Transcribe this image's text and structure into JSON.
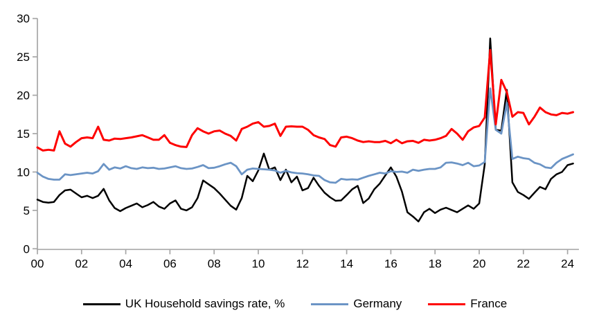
{
  "chart_data": {
    "type": "line",
    "title": "",
    "xlabel": "",
    "ylabel": "",
    "x_unit": "quarterly, 2000Q1 - 2024Q2",
    "x_tick_labels": [
      "00",
      "02",
      "04",
      "06",
      "08",
      "10",
      "12",
      "14",
      "16",
      "18",
      "20",
      "22",
      "24"
    ],
    "y_ticks": [
      0,
      5,
      10,
      15,
      20,
      25,
      30
    ],
    "ylim": [
      0,
      30
    ],
    "grid": false,
    "legend_position": "bottom",
    "axis_color": "#a6a6a6",
    "series": [
      {
        "id": "uk",
        "name": "UK Household savings rate, %",
        "color": "#000000",
        "stroke_width": 2.5,
        "values": [
          6.4,
          6.1,
          6.0,
          6.1,
          7.0,
          7.6,
          7.7,
          7.2,
          6.7,
          6.9,
          6.6,
          6.9,
          7.8,
          6.3,
          5.3,
          4.9,
          5.3,
          5.6,
          5.9,
          5.4,
          5.7,
          6.1,
          5.5,
          5.2,
          5.9,
          6.3,
          5.2,
          5.0,
          5.4,
          6.6,
          8.9,
          8.4,
          7.9,
          7.2,
          6.4,
          5.6,
          5.1,
          6.6,
          9.5,
          8.8,
          10.2,
          12.4,
          10.3,
          10.6,
          8.95,
          10.3,
          8.65,
          9.4,
          7.6,
          7.9,
          9.25,
          8.2,
          7.3,
          6.7,
          6.25,
          6.3,
          7.0,
          7.75,
          8.2,
          5.95,
          6.55,
          7.75,
          8.5,
          9.55,
          10.6,
          9.4,
          7.45,
          4.75,
          4.2,
          3.55,
          4.75,
          5.2,
          4.65,
          5.1,
          5.35,
          5.05,
          4.75,
          5.2,
          5.65,
          5.2,
          5.9,
          11.0,
          27.4,
          15.5,
          15.4,
          20.7,
          8.65,
          7.4,
          7.0,
          6.5,
          7.3,
          8.05,
          7.75,
          9.1,
          9.7,
          10.0,
          10.9,
          11.1
        ]
      },
      {
        "id": "germany",
        "name": "Germany",
        "color": "#6b94c5",
        "stroke_width": 2.8,
        "values": [
          9.9,
          9.4,
          9.1,
          9.0,
          9.0,
          9.7,
          9.6,
          9.7,
          9.8,
          9.9,
          9.8,
          10.1,
          11.05,
          10.3,
          10.6,
          10.45,
          10.75,
          10.5,
          10.4,
          10.6,
          10.5,
          10.55,
          10.4,
          10.45,
          10.6,
          10.75,
          10.5,
          10.4,
          10.45,
          10.65,
          10.9,
          10.5,
          10.55,
          10.75,
          11.0,
          11.2,
          10.75,
          9.7,
          10.3,
          10.45,
          10.4,
          10.35,
          10.3,
          10.2,
          9.9,
          10.15,
          9.95,
          9.85,
          9.8,
          9.7,
          9.55,
          9.5,
          8.95,
          8.65,
          8.6,
          9.1,
          9.0,
          9.05,
          9.0,
          9.25,
          9.5,
          9.7,
          9.9,
          9.8,
          10.1,
          10.0,
          10.05,
          9.9,
          10.3,
          10.15,
          10.3,
          10.4,
          10.4,
          10.6,
          11.2,
          11.25,
          11.1,
          10.9,
          11.2,
          10.75,
          10.85,
          11.3,
          20.9,
          15.5,
          15.0,
          19.0,
          11.7,
          12.0,
          11.8,
          11.7,
          11.2,
          11.0,
          10.6,
          10.5,
          11.2,
          11.7,
          12.0,
          12.3
        ]
      },
      {
        "id": "france",
        "name": "France",
        "color": "#fe0000",
        "stroke_width": 3.0,
        "values": [
          13.2,
          12.8,
          12.9,
          12.8,
          15.3,
          13.7,
          13.3,
          13.9,
          14.4,
          14.5,
          14.4,
          15.9,
          14.2,
          14.1,
          14.35,
          14.3,
          14.4,
          14.5,
          14.65,
          14.8,
          14.5,
          14.2,
          14.2,
          14.8,
          13.8,
          13.5,
          13.3,
          13.25,
          14.8,
          15.7,
          15.3,
          15.0,
          15.3,
          15.4,
          15.0,
          14.7,
          14.1,
          15.6,
          15.9,
          16.3,
          16.5,
          15.9,
          16.0,
          16.3,
          14.7,
          15.9,
          15.95,
          15.9,
          15.9,
          15.5,
          14.8,
          14.5,
          14.3,
          13.5,
          13.3,
          14.5,
          14.6,
          14.4,
          14.1,
          13.9,
          14.0,
          13.9,
          13.9,
          14.05,
          13.75,
          14.2,
          13.75,
          14.0,
          14.05,
          13.8,
          14.2,
          14.1,
          14.2,
          14.4,
          14.7,
          15.6,
          15.0,
          14.2,
          15.3,
          15.8,
          16.0,
          17.1,
          25.9,
          16.2,
          22.0,
          20.4,
          17.2,
          17.8,
          17.7,
          16.2,
          17.2,
          18.4,
          17.8,
          17.5,
          17.4,
          17.7,
          17.6,
          17.8
        ]
      }
    ]
  }
}
